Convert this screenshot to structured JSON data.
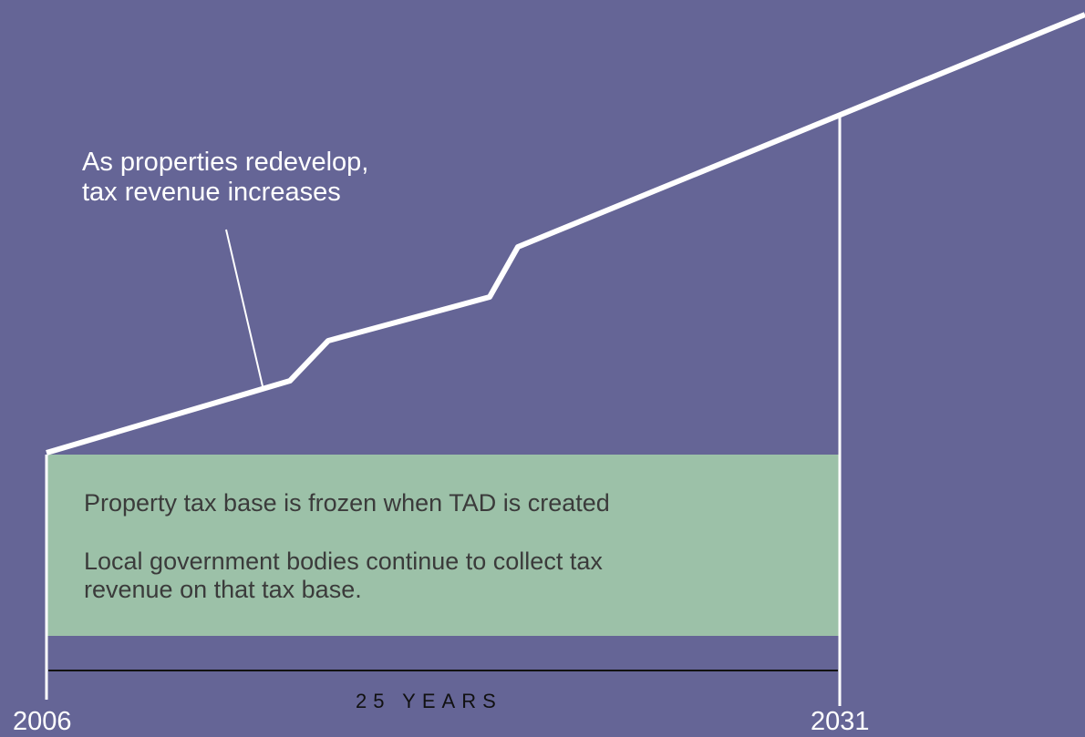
{
  "annotation": "As properties redevelop,\ntax revenue increases",
  "frozen_base": {
    "line1": "Property tax base is frozen when TAD is created",
    "line2": "Local government bodies continue to collect tax\nrevenue on that tax base."
  },
  "period_label": "25 YEARS",
  "start_year": "2006",
  "end_year": "2031",
  "colors": {
    "background": "#656596",
    "frozen_base_fill": "#9cc1a8",
    "revenue_line": "#ffffff",
    "period_bar": "#111111"
  }
}
